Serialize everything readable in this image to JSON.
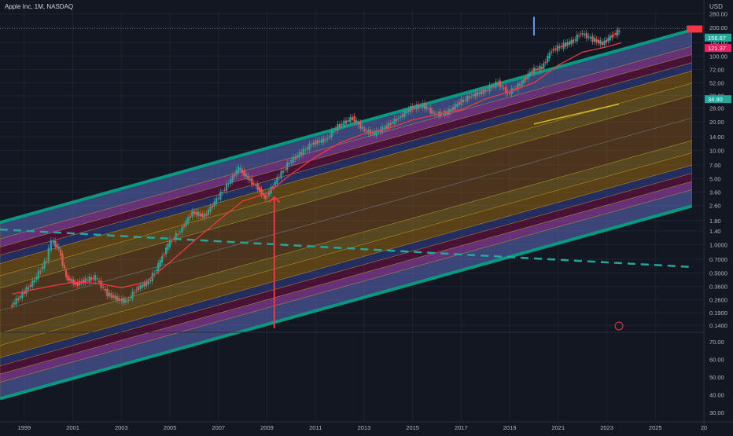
{
  "chart_title": "Apple Inc, 1M, NASDAQ",
  "currency": "USD",
  "chart_data": {
    "type": "candlestick",
    "symbol": "Apple Inc",
    "interval": "1M",
    "exchange": "NASDAQ",
    "x_tick_labels": [
      "1999",
      "2001",
      "2003",
      "2005",
      "2007",
      "2009",
      "2011",
      "2013",
      "2015",
      "2017",
      "2019",
      "2021",
      "2023",
      "2025",
      "20"
    ],
    "x_range": [
      1998,
      2027
    ],
    "price_scale": "log",
    "price_tick_labels": [
      "280.00",
      "200.00",
      "140.00",
      "100.00",
      "72.00",
      "52.00",
      "38.00",
      "28.00",
      "20.00",
      "14.00",
      "10.00",
      "7.00",
      "5.00",
      "3.60",
      "2.60",
      "1.80",
      "1.40",
      "1.0000",
      "0.7000",
      "0.5000",
      "0.3600",
      "0.2600",
      "0.1900",
      "0.1400"
    ],
    "price_range": [
      0.12,
      300
    ],
    "price_labels": [
      {
        "text": "156.67",
        "value": 156.67,
        "color": "#26a69a"
      },
      {
        "text": "121.37",
        "value": 121.37,
        "color": "#e91e63"
      },
      {
        "text": "34.90",
        "value": 34.9,
        "color": "#26a69a"
      }
    ],
    "series": [
      {
        "name": "",
        "kind": "candles",
        "color_up": "#26a69a",
        "color_down": "#ef5350",
        "points": [
          [
            1998.5,
            0.22
          ],
          [
            1999.0,
            0.3
          ],
          [
            1999.5,
            0.42
          ],
          [
            2000.0,
            0.7
          ],
          [
            2000.2,
            1.1
          ],
          [
            2000.5,
            0.9
          ],
          [
            2000.8,
            0.45
          ],
          [
            2001.2,
            0.38
          ],
          [
            2001.6,
            0.42
          ],
          [
            2002.0,
            0.45
          ],
          [
            2002.5,
            0.3
          ],
          [
            2003.0,
            0.26
          ],
          [
            2003.3,
            0.25
          ],
          [
            2003.7,
            0.34
          ],
          [
            2004.2,
            0.4
          ],
          [
            2004.6,
            0.6
          ],
          [
            2005.0,
            1.0
          ],
          [
            2005.5,
            1.4
          ],
          [
            2006.0,
            2.2
          ],
          [
            2006.5,
            2.0
          ],
          [
            2007.0,
            3.0
          ],
          [
            2007.5,
            4.5
          ],
          [
            2007.9,
            6.5
          ],
          [
            2008.3,
            5.0
          ],
          [
            2008.7,
            4.0
          ],
          [
            2009.0,
            3.1
          ],
          [
            2009.5,
            5.0
          ],
          [
            2010.0,
            7.5
          ],
          [
            2010.5,
            9.5
          ],
          [
            2011.0,
            12
          ],
          [
            2011.5,
            13
          ],
          [
            2012.0,
            18
          ],
          [
            2012.6,
            22
          ],
          [
            2013.1,
            16
          ],
          [
            2013.5,
            15
          ],
          [
            2014.0,
            18
          ],
          [
            2014.5,
            22
          ],
          [
            2015.0,
            28
          ],
          [
            2015.5,
            30
          ],
          [
            2016.0,
            24
          ],
          [
            2016.5,
            25
          ],
          [
            2017.0,
            32
          ],
          [
            2017.5,
            38
          ],
          [
            2018.0,
            42
          ],
          [
            2018.6,
            52
          ],
          [
            2019.0,
            40
          ],
          [
            2019.5,
            50
          ],
          [
            2020.0,
            70
          ],
          [
            2020.4,
            75
          ],
          [
            2020.8,
            115
          ],
          [
            2021.3,
            130
          ],
          [
            2021.7,
            145
          ],
          [
            2022.0,
            175
          ],
          [
            2022.5,
            150
          ],
          [
            2022.9,
            135
          ],
          [
            2023.3,
            165
          ],
          [
            2023.6,
            185
          ]
        ]
      },
      {
        "name": "",
        "kind": "moving_average",
        "color": "#f23645",
        "points": [
          [
            1998.5,
            0.3
          ],
          [
            2000.0,
            0.36
          ],
          [
            2001.0,
            0.4
          ],
          [
            2002.0,
            0.39
          ],
          [
            2003.0,
            0.35
          ],
          [
            2004.0,
            0.4
          ],
          [
            2005.0,
            0.65
          ],
          [
            2006.0,
            1.1
          ],
          [
            2007.0,
            1.8
          ],
          [
            2008.0,
            2.9
          ],
          [
            2009.0,
            3.5
          ],
          [
            2010.0,
            5.6
          ],
          [
            2011.0,
            8.5
          ],
          [
            2012.0,
            12
          ],
          [
            2013.0,
            15
          ],
          [
            2014.0,
            17
          ],
          [
            2015.0,
            21
          ],
          [
            2016.0,
            24
          ],
          [
            2017.0,
            27
          ],
          [
            2018.0,
            35
          ],
          [
            2019.0,
            42
          ],
          [
            2020.0,
            52
          ],
          [
            2021.0,
            80
          ],
          [
            2022.0,
            110
          ],
          [
            2023.0,
            125
          ],
          [
            2023.6,
            138
          ]
        ]
      }
    ],
    "annotations": [
      {
        "type": "regression_channel",
        "start": [
          1998.0,
          0.2
        ],
        "end": [
          2026.5,
          22
        ],
        "note": "upper/lower boundaries plus inner bands"
      },
      {
        "type": "trend_line",
        "style": "dashed",
        "color": "#26a69a",
        "start": [
          1998.0,
          1.45
        ],
        "end": [
          2026.5,
          0.58
        ]
      },
      {
        "type": "arrow",
        "color": "#f23645",
        "x": 2009.3,
        "from": 0.13,
        "to": 3.2
      },
      {
        "type": "vertical_line",
        "color": "#5b9cf6",
        "x": 2020.0,
        "from": 165,
        "to": 260
      },
      {
        "type": "trend_line",
        "color": "#ffeb3b",
        "start": [
          2020.0,
          19
        ],
        "end": [
          2023.5,
          31
        ]
      },
      {
        "type": "horizontal_line",
        "color": "#787b86",
        "price": 195
      }
    ],
    "volume_panel": {
      "tick_labels": [
        "70.00",
        "60.00",
        "50.00",
        "40.00",
        "30.00"
      ],
      "range": [
        25,
        75
      ]
    },
    "grid": true,
    "legend": "none"
  }
}
